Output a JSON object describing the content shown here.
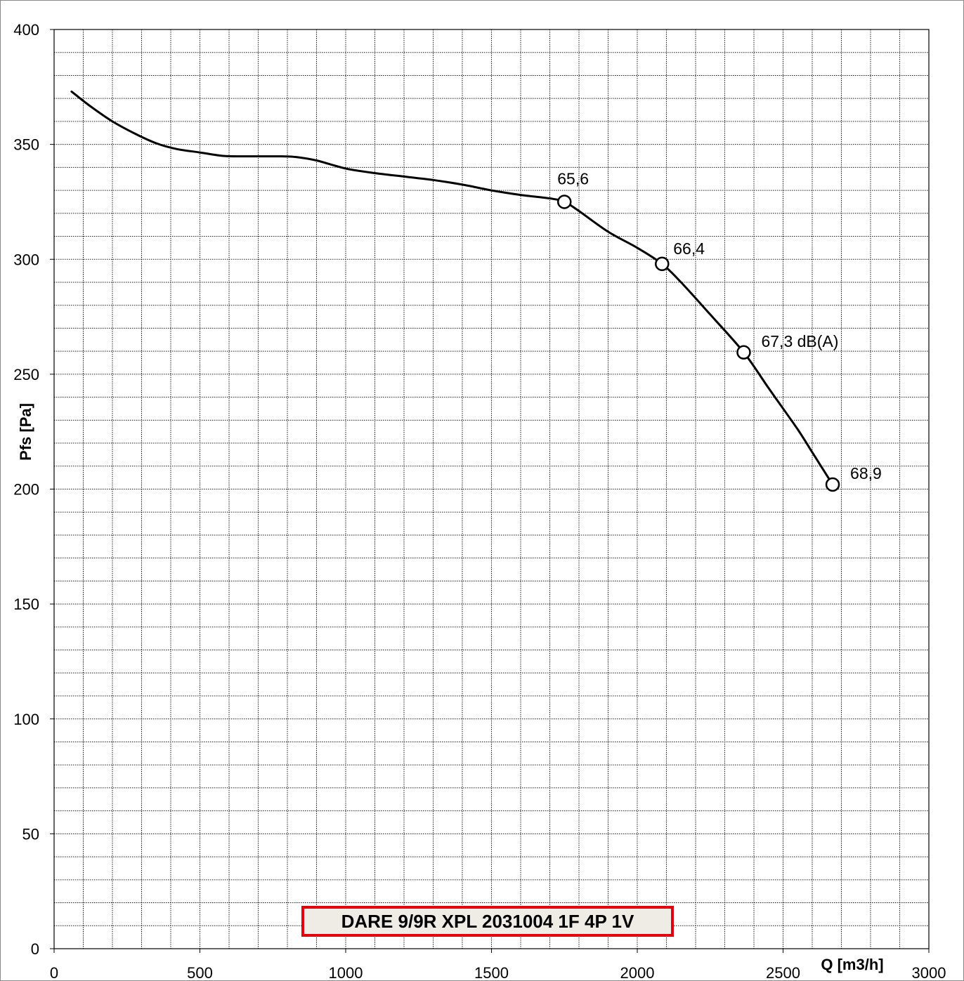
{
  "chart_data": {
    "type": "line",
    "title": "",
    "xlabel": "Q [m3/h]",
    "ylabel": "Pfs [Pa]",
    "xlim": [
      0,
      3000
    ],
    "ylim": [
      0,
      400
    ],
    "x_ticks": [
      "0",
      "500",
      "1000",
      "1500",
      "2000",
      "2500",
      "3000"
    ],
    "y_ticks": [
      "0",
      "50",
      "100",
      "150",
      "200",
      "250",
      "300",
      "350",
      "400"
    ],
    "grid": true,
    "series": [
      {
        "x": [
          60,
          120,
          200,
          280,
          350,
          420,
          500,
          580,
          650,
          700,
          780,
          830,
          900,
          1000,
          1100,
          1200,
          1300,
          1400,
          1500,
          1600,
          1700,
          1750,
          1800,
          1900,
          2000,
          2085,
          2150,
          2250,
          2365,
          2450,
          2550,
          2600,
          2640,
          2670
        ],
        "y": [
          373,
          367,
          360,
          354.5,
          350.5,
          348,
          346.5,
          345,
          344.8,
          344.8,
          344.8,
          344.5,
          343,
          339.5,
          337.5,
          336,
          334.5,
          332.5,
          330,
          328,
          326.5,
          325,
          321,
          312,
          305,
          298,
          290,
          276,
          259.5,
          244,
          226,
          216,
          208,
          202
        ]
      }
    ],
    "markers": [
      {
        "x": 1750,
        "y": 325,
        "label": "65,6"
      },
      {
        "x": 2085,
        "y": 298,
        "label": "66,4"
      },
      {
        "x": 2365,
        "y": 259.5,
        "label": "67,3 dB(A)"
      },
      {
        "x": 2670,
        "y": 202,
        "label": "68,9"
      }
    ],
    "model_label": "DARE 9/9R XPL 2031004 1F 4P 1V"
  }
}
